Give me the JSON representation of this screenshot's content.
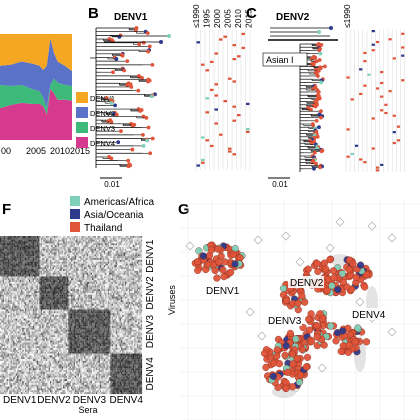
{
  "colors": {
    "denv1": "#f5a623",
    "denv2": "#5a72c8",
    "denv3": "#3dba7a",
    "denv4": "#d63a8e",
    "americas_africa": "#7fd0b8",
    "asia_oceania": "#2e3a8c",
    "thailand": "#e0553a"
  },
  "panels": {
    "B": {
      "label": "B",
      "title": "DENV1",
      "scale_label": "0.01",
      "year_ticks": [
        "≤1990",
        "1995",
        "2000",
        "2005",
        "2010",
        "2015"
      ]
    },
    "C": {
      "label": "C",
      "title": "DENV2",
      "clade_label": "Asian I",
      "scale_label": "0.01",
      "year_ticks": [
        "≤1990"
      ]
    },
    "F": {
      "label": "F",
      "xlabel": "Sera",
      "ylabel": "Viruses",
      "col_groups": [
        "DENV1",
        "DENV2",
        "DENV3",
        "DENV4"
      ],
      "row_groups": [
        "DENV1",
        "DENV2",
        "DENV3",
        "DENV4"
      ]
    },
    "G": {
      "label": "G",
      "cluster_labels": [
        "DENV1",
        "DENV2",
        "DENV3",
        "DENV4"
      ]
    }
  },
  "chart_data": [
    {
      "type": "area",
      "panel": "A",
      "x_ticks": [
        "00",
        "2005",
        "2010",
        "2015"
      ],
      "x": [
        1996,
        1999,
        2002,
        2005,
        2007,
        2008,
        2009,
        2010,
        2011,
        2012,
        2014,
        2016
      ],
      "ylim": [
        0,
        1
      ],
      "series": [
        {
          "name": "DENV1",
          "values": [
            0.3,
            0.29,
            0.26,
            0.28,
            0.3,
            0.34,
            0.3,
            0.04,
            0.18,
            0.26,
            0.3,
            0.35
          ]
        },
        {
          "name": "DENV2",
          "values": [
            0.18,
            0.2,
            0.22,
            0.24,
            0.24,
            0.26,
            0.4,
            0.44,
            0.24,
            0.2,
            0.18,
            0.14
          ]
        },
        {
          "name": "DENV3",
          "values": [
            0.22,
            0.18,
            0.17,
            0.14,
            0.12,
            0.08,
            0.06,
            0.04,
            0.14,
            0.16,
            0.14,
            0.14
          ]
        },
        {
          "name": "DENV4",
          "values": [
            0.3,
            0.33,
            0.35,
            0.34,
            0.34,
            0.32,
            0.24,
            0.48,
            0.44,
            0.38,
            0.38,
            0.37
          ]
        }
      ],
      "legend": [
        "DENV1",
        "DENV2",
        "DENV3",
        "DENV4"
      ],
      "legend_placement": "right"
    }
  ],
  "legend_F": [
    {
      "name": "Americas/Africa",
      "color_key": "americas_africa"
    },
    {
      "name": "Asia/Oceania",
      "color_key": "asia_oceania"
    },
    {
      "name": "Thailand",
      "color_key": "thailand"
    }
  ]
}
